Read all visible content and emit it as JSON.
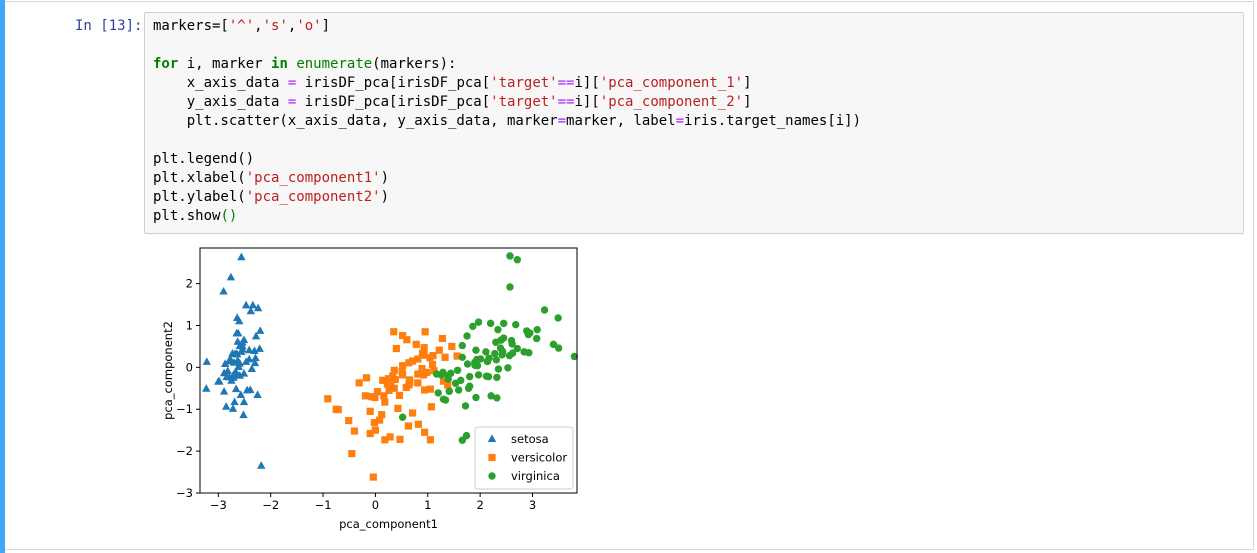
{
  "prompt": "In [13]:",
  "code": {
    "l1": {
      "a": "markers=[",
      "s1": "'^'",
      "c1": ",",
      "s2": "'s'",
      "c2": ",",
      "s3": "'o'",
      "b": "]"
    },
    "l3": {
      "kw_for": "for",
      "a": " i, marker ",
      "kw_in": "in",
      "sp": " ",
      "fn": "enumerate",
      "b": "(markers):"
    },
    "l4": {
      "a": "    x_axis_data ",
      "eq": "=",
      "b": " irisDF_pca[irisDF_pca[",
      "s1": "'target'",
      "op": "==",
      "c": "i][",
      "s2": "'pca_component_1'",
      "d": "]"
    },
    "l5": {
      "a": "    y_axis_data ",
      "eq": "=",
      "b": " irisDF_pca[irisDF_pca[",
      "s1": "'target'",
      "op": "==",
      "c": "i][",
      "s2": "'pca_component_2'",
      "d": "]"
    },
    "l6": {
      "a": "    plt.scatter(x_axis_data, y_axis_data, marker",
      "eq1": "=",
      "b": "marker, label",
      "eq2": "=",
      "c": "iris.target_names[i])"
    },
    "l8": {
      "a": "plt.legend()"
    },
    "l9": {
      "a": "plt.xlabel(",
      "s": "'pca_component1'",
      "b": ")"
    },
    "l10": {
      "a": "plt.ylabel(",
      "s": "'pca_component2'",
      "b": ")"
    },
    "l11": {
      "a": "plt.show",
      "b": "()"
    }
  },
  "colors": {
    "setosa": "#1f77b4",
    "versicolor": "#ff7f0e",
    "virginica": "#2ca02c",
    "prompt": "#303f9f",
    "cell_bar": "#42a5f5"
  },
  "chart_data": {
    "type": "scatter",
    "xlabel": "pca_component1",
    "ylabel": "pca_component2",
    "xlim": [
      -3.35,
      3.85
    ],
    "ylim": [
      -3.0,
      2.85
    ],
    "xticks": [
      -3,
      -2,
      -1,
      0,
      1,
      2,
      3
    ],
    "yticks": [
      -3,
      -2,
      -1,
      0,
      1,
      2
    ],
    "legend": "lower-right",
    "series": [
      {
        "name": "setosa",
        "marker": "triangle",
        "color": "#1f77b4",
        "points": [
          [
            -2.68,
            0.32
          ],
          [
            -2.71,
            -0.18
          ],
          [
            -2.89,
            -0.14
          ],
          [
            -2.75,
            -0.32
          ],
          [
            -2.73,
            0.33
          ],
          [
            -2.28,
            0.74
          ],
          [
            -2.82,
            -0.09
          ],
          [
            -2.63,
            0.16
          ],
          [
            -2.89,
            -0.58
          ],
          [
            -2.67,
            -0.11
          ],
          [
            -2.51,
            0.65
          ],
          [
            -2.61,
            0.01
          ],
          [
            -2.79,
            -0.24
          ],
          [
            -3.23,
            -0.51
          ],
          [
            -2.64,
            1.18
          ],
          [
            -2.38,
            1.34
          ],
          [
            -2.62,
            0.81
          ],
          [
            -2.65,
            0.31
          ],
          [
            -2.2,
            0.87
          ],
          [
            -2.59,
            0.51
          ],
          [
            -2.31,
            0.39
          ],
          [
            -2.54,
            0.43
          ],
          [
            -3.22,
            0.13
          ],
          [
            -2.3,
            0.1
          ],
          [
            -2.36,
            -0.04
          ],
          [
            -2.51,
            -0.15
          ],
          [
            -2.47,
            0.13
          ],
          [
            -2.56,
            0.37
          ],
          [
            -2.64,
            0.31
          ],
          [
            -2.63,
            -0.19
          ],
          [
            -2.59,
            -0.2
          ],
          [
            -2.41,
            0.41
          ],
          [
            -2.65,
            0.81
          ],
          [
            -2.6,
            1.1
          ],
          [
            -2.67,
            -0.11
          ],
          [
            -2.87,
            0.08
          ],
          [
            -2.63,
            0.61
          ],
          [
            -2.8,
            0.14
          ],
          [
            -2.98,
            -0.34
          ],
          [
            -2.59,
            0.09
          ],
          [
            -2.77,
            0.19
          ],
          [
            -2.85,
            -0.94
          ],
          [
            -3.0,
            -0.34
          ],
          [
            -2.41,
            0.19
          ],
          [
            -2.21,
            0.44
          ],
          [
            -2.71,
            -0.25
          ],
          [
            -2.54,
            0.5
          ],
          [
            -2.84,
            -0.23
          ],
          [
            -2.54,
            0.59
          ],
          [
            -2.7,
            0.11
          ],
          [
            -2.56,
            2.63
          ],
          [
            -2.76,
            2.15
          ],
          [
            -2.9,
            1.81
          ],
          [
            -2.47,
            1.48
          ],
          [
            -2.34,
            1.48
          ],
          [
            -2.24,
            1.41
          ],
          [
            -2.52,
            -1.14
          ],
          [
            -2.69,
            -0.83
          ],
          [
            -2.25,
            -0.66
          ],
          [
            -2.72,
            -0.99
          ],
          [
            -2.51,
            -0.83
          ],
          [
            -2.18,
            -2.35
          ],
          [
            -2.66,
            -0.52
          ],
          [
            -2.39,
            -0.54
          ],
          [
            -2.57,
            -0.66
          ],
          [
            -2.29,
            0.22
          ],
          [
            -2.45,
            -0.55
          ]
        ]
      },
      {
        "name": "versicolor",
        "marker": "square",
        "color": "#ff7f0e",
        "points": [
          [
            1.28,
            0.69
          ],
          [
            0.93,
            0.32
          ],
          [
            1.46,
            0.5
          ],
          [
            0.18,
            -0.83
          ],
          [
            1.09,
            0.07
          ],
          [
            0.64,
            -0.42
          ],
          [
            1.1,
            0.28
          ],
          [
            -0.75,
            -1.0
          ],
          [
            1.04,
            0.23
          ],
          [
            -0.01,
            -0.72
          ],
          [
            -0.51,
            -1.27
          ],
          [
            0.51,
            -0.1
          ],
          [
            0.26,
            -0.55
          ],
          [
            0.98,
            -0.12
          ],
          [
            -0.17,
            -0.25
          ],
          [
            0.93,
            0.47
          ],
          [
            0.66,
            -0.35
          ],
          [
            0.23,
            -0.33
          ],
          [
            0.94,
            -0.54
          ],
          [
            0.04,
            -0.58
          ],
          [
            1.12,
            -0.08
          ],
          [
            0.36,
            -0.07
          ],
          [
            1.3,
            -0.33
          ],
          [
            0.92,
            -0.18
          ],
          [
            0.71,
            0.15
          ],
          [
            0.9,
            0.33
          ],
          [
            1.33,
            0.24
          ],
          [
            1.56,
            0.27
          ],
          [
            0.81,
            -0.16
          ],
          [
            -0.31,
            -0.37
          ],
          [
            -0.07,
            -0.7
          ],
          [
            -0.19,
            -0.68
          ],
          [
            0.14,
            -0.31
          ],
          [
            1.38,
            -0.42
          ],
          [
            0.59,
            -0.48
          ],
          [
            0.81,
            0.2
          ],
          [
            1.22,
            0.41
          ],
          [
            0.81,
            -0.37
          ],
          [
            0.25,
            -0.27
          ],
          [
            0.16,
            -0.68
          ],
          [
            0.46,
            -0.67
          ],
          [
            0.89,
            -0.03
          ],
          [
            0.23,
            -0.4
          ],
          [
            -0.71,
            -1.01
          ],
          [
            0.36,
            -0.5
          ],
          [
            0.33,
            -0.21
          ],
          [
            0.38,
            -0.29
          ],
          [
            0.64,
            0.11
          ],
          [
            -0.91,
            -0.75
          ],
          [
            0.3,
            -0.35
          ],
          [
            0.35,
            0.85
          ],
          [
            0.95,
            0.85
          ],
          [
            0.6,
            0.66
          ],
          [
            0.52,
            0.76
          ],
          [
            0.9,
            0.29
          ],
          [
            1.05,
            -0.52
          ],
          [
            0.08,
            -1.26
          ],
          [
            -0.4,
            -1.52
          ],
          [
            -0.04,
            -2.62
          ],
          [
            0.47,
            -1.72
          ],
          [
            0.43,
            -0.98
          ],
          [
            -0.1,
            -1.05
          ],
          [
            0.82,
            -1.36
          ],
          [
            0.94,
            -1.55
          ],
          [
            1.05,
            -1.73
          ],
          [
            0.63,
            -1.4
          ],
          [
            0.18,
            -1.73
          ],
          [
            -0.02,
            -1.32
          ],
          [
            -0.1,
            -1.58
          ],
          [
            0.0,
            -1.5
          ],
          [
            0.28,
            -1.66
          ],
          [
            0.12,
            -1.13
          ],
          [
            -0.45,
            -2.06
          ],
          [
            0.65,
            -0.3
          ],
          [
            0.71,
            -1.09
          ],
          [
            1.07,
            -0.94
          ],
          [
            0.52,
            -0.18
          ],
          [
            0.4,
            0.45
          ],
          [
            0.52,
            0.04
          ],
          [
            0.78,
            0.55
          ]
        ]
      },
      {
        "name": "virginica",
        "marker": "circle",
        "color": "#2ca02c",
        "points": [
          [
            2.53,
            -0.01
          ],
          [
            1.41,
            -0.57
          ],
          [
            2.62,
            0.34
          ],
          [
            1.97,
            -0.18
          ],
          [
            2.35,
            -0.04
          ],
          [
            3.4,
            0.55
          ],
          [
            0.52,
            -1.19
          ],
          [
            2.93,
            0.35
          ],
          [
            2.32,
            -0.24
          ],
          [
            2.92,
            0.78
          ],
          [
            1.66,
            0.24
          ],
          [
            1.8,
            -0.22
          ],
          [
            2.17,
            0.22
          ],
          [
            1.34,
            -0.78
          ],
          [
            1.59,
            -0.54
          ],
          [
            1.9,
            0.12
          ],
          [
            1.95,
            0.04
          ],
          [
            3.49,
            1.18
          ],
          [
            3.8,
            0.26
          ],
          [
            1.3,
            -0.76
          ],
          [
            2.43,
            0.38
          ],
          [
            1.2,
            -0.61
          ],
          [
            3.5,
            0.46
          ],
          [
            1.39,
            -0.2
          ],
          [
            2.28,
            0.33
          ],
          [
            2.61,
            0.56
          ],
          [
            1.26,
            -0.18
          ],
          [
            1.29,
            -0.12
          ],
          [
            2.12,
            -0.21
          ],
          [
            2.39,
            0.46
          ],
          [
            2.84,
            0.37
          ],
          [
            3.23,
            1.37
          ],
          [
            2.16,
            -0.22
          ],
          [
            1.44,
            -0.14
          ],
          [
            1.78,
            -0.5
          ],
          [
            3.08,
            0.69
          ],
          [
            2.14,
            0.14
          ],
          [
            1.9,
            0.05
          ],
          [
            1.17,
            -0.16
          ],
          [
            2.11,
            0.37
          ],
          [
            2.31,
            0.18
          ],
          [
            1.92,
            0.41
          ],
          [
            1.41,
            -0.57
          ],
          [
            2.56,
            0.28
          ],
          [
            2.42,
            0.3
          ],
          [
            1.94,
            0.19
          ],
          [
            1.53,
            -0.38
          ],
          [
            1.76,
            0.08
          ],
          [
            1.9,
            0.12
          ],
          [
            1.39,
            -0.28
          ],
          [
            2.45,
            0.7
          ],
          [
            1.72,
            -0.92
          ],
          [
            1.92,
            -0.72
          ],
          [
            1.63,
            -0.31
          ],
          [
            1.8,
            -0.45
          ],
          [
            2.21,
            -0.68
          ],
          [
            1.57,
            -0.07
          ],
          [
            2.3,
            0.6
          ],
          [
            2.01,
            0.2
          ],
          [
            1.66,
            0.52
          ],
          [
            2.45,
            1.05
          ],
          [
            2.68,
            1.02
          ],
          [
            2.2,
            1.05
          ],
          [
            1.86,
            0.98
          ],
          [
            1.97,
            1.08
          ],
          [
            2.34,
            0.9
          ],
          [
            2.6,
            0.64
          ],
          [
            2.89,
            0.87
          ],
          [
            2.71,
            2.57
          ],
          [
            2.57,
            2.66
          ],
          [
            2.57,
            1.92
          ],
          [
            1.74,
            -1.63
          ],
          [
            1.66,
            -1.74
          ],
          [
            2.4,
            0.65
          ],
          [
            1.75,
            0.75
          ],
          [
            2.32,
            -0.73
          ],
          [
            3.09,
            0.9
          ],
          [
            2.95,
            0.82
          ],
          [
            2.71,
            0.45
          ]
        ]
      }
    ]
  }
}
